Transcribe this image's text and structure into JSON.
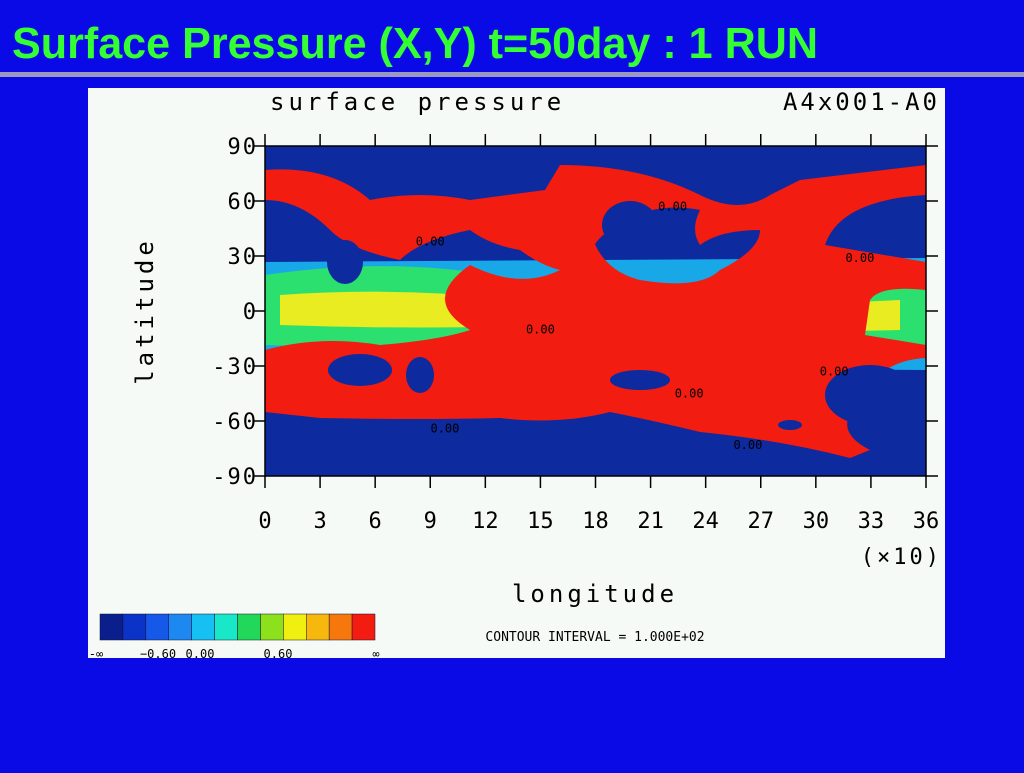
{
  "slide_title": "Surface Pressure (X,Y) t=50day : 1 RUN",
  "chart_data": {
    "type": "contour",
    "title": "surface pressure",
    "run_label": "A4x001-A0",
    "x_label": "longitude",
    "x_scale_label": "(×10)",
    "y_label": "latitude",
    "xlim": [
      0,
      36
    ],
    "xticks": [
      0,
      3,
      6,
      9,
      12,
      15,
      18,
      21,
      24,
      27,
      30,
      33,
      36
    ],
    "ylim": [
      -90,
      90
    ],
    "yticks": [
      90,
      60,
      30,
      0,
      -30,
      -60,
      -90
    ],
    "contour_labels": [
      {
        "x": 22.2,
        "y": 57,
        "label": "0.00"
      },
      {
        "x": 9.0,
        "y": 38,
        "label": "0.00"
      },
      {
        "x": 32.4,
        "y": 29,
        "label": "0.00"
      },
      {
        "x": 15.0,
        "y": -10,
        "label": "0.00"
      },
      {
        "x": 23.1,
        "y": -45,
        "label": "0.00"
      },
      {
        "x": 31.0,
        "y": -33,
        "label": "0.00"
      },
      {
        "x": 9.8,
        "y": -64,
        "label": "0.00"
      },
      {
        "x": 26.3,
        "y": -73,
        "label": "0.00"
      }
    ],
    "contour_interval": "CONTOUR INTERVAL = 1.000E+02",
    "colorbar": {
      "colors": [
        "#0a1f8c",
        "#0b33c8",
        "#1658e8",
        "#1c88f0",
        "#16c0f2",
        "#18e8c8",
        "#22d85a",
        "#8ce01c",
        "#f0f010",
        "#f7b80e",
        "#f6780c",
        "#f21c10"
      ],
      "labels": [
        "-∞",
        "−0.60",
        "0.00",
        "0.60",
        "∞"
      ]
    }
  }
}
